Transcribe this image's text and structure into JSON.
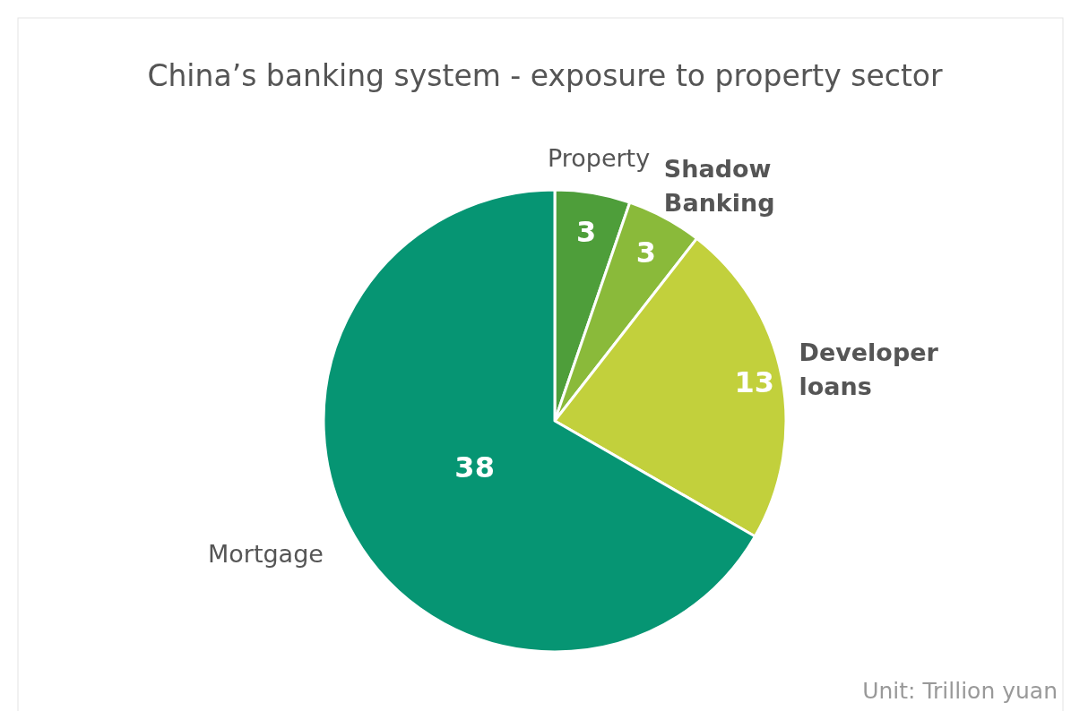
{
  "chart_data": {
    "type": "pie",
    "title": "China’s banking system -  exposure to property sector",
    "categories": [
      "Property",
      "Shadow Banking",
      "Developer loans",
      "Mortgage"
    ],
    "values": [
      3,
      3,
      13,
      38
    ],
    "colors": [
      "#4e9e3a",
      "#8aba3a",
      "#c2d03c",
      "#069573"
    ],
    "data_labels": true,
    "annotations": [
      "Unit: Trillion yuan"
    ]
  }
}
